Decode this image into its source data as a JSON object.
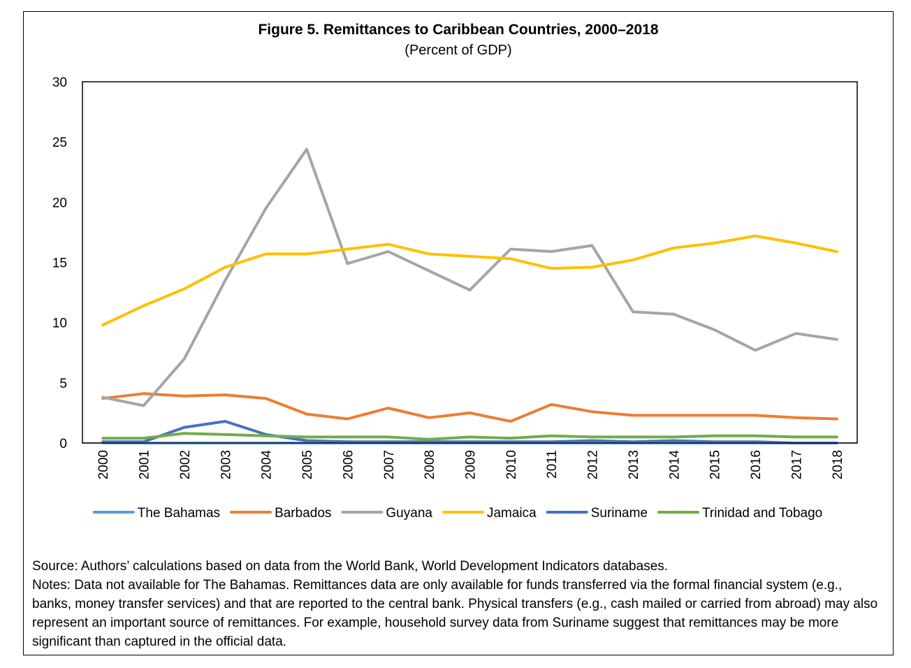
{
  "chart_data": {
    "type": "line",
    "title": "Figure 5. Remittances to Caribbean Countries, 2000–2018",
    "subtitle": "(Percent of GDP)",
    "xlabel": "",
    "ylabel": "",
    "ylim": [
      0,
      30
    ],
    "yticks": [
      "0",
      "5",
      "10",
      "15",
      "20",
      "25",
      "30"
    ],
    "categories": [
      "2000",
      "2001",
      "2002",
      "2003",
      "2004",
      "2005",
      "2006",
      "2007",
      "2008",
      "2009",
      "2010",
      "2011",
      "2012",
      "2013",
      "2014",
      "2015",
      "2016",
      "2017",
      "2018"
    ],
    "grid": false,
    "legend_position": "bottom",
    "series": [
      {
        "name": "The Bahamas",
        "color": "#5B9BD5",
        "values": [
          0,
          0,
          0,
          0,
          0,
          0,
          0,
          0,
          0,
          0,
          0,
          0,
          0,
          0,
          0,
          0,
          0,
          0,
          0
        ]
      },
      {
        "name": "Barbados",
        "color": "#ED7D31",
        "values": [
          3.7,
          4.1,
          3.9,
          4.0,
          3.7,
          2.4,
          2.0,
          2.9,
          2.1,
          2.5,
          1.8,
          3.2,
          2.6,
          2.3,
          2.3,
          2.3,
          2.3,
          2.1,
          2.0
        ]
      },
      {
        "name": "Guyana",
        "color": "#A5A5A5",
        "values": [
          3.8,
          3.1,
          7.0,
          13.5,
          19.5,
          24.4,
          14.9,
          15.9,
          14.3,
          12.7,
          16.1,
          15.9,
          16.4,
          10.9,
          10.7,
          9.4,
          7.7,
          9.1,
          8.6
        ]
      },
      {
        "name": "Jamaica",
        "color": "#FFC000",
        "values": [
          9.8,
          11.4,
          12.8,
          14.6,
          15.7,
          15.7,
          16.1,
          16.5,
          15.7,
          15.5,
          15.3,
          14.5,
          14.6,
          15.2,
          16.2,
          16.6,
          17.2,
          16.6,
          15.9
        ]
      },
      {
        "name": "Suriname",
        "color": "#4472C4",
        "values": [
          0.1,
          0.1,
          1.3,
          1.8,
          0.7,
          0.2,
          0.1,
          0.1,
          0.1,
          0.1,
          0.1,
          0.1,
          0.2,
          0.1,
          0.2,
          0.1,
          0.1,
          0.0,
          0.0
        ]
      },
      {
        "name": "Trinidad and Tobago",
        "color": "#70AD47",
        "values": [
          0.4,
          0.4,
          0.8,
          0.7,
          0.6,
          0.5,
          0.5,
          0.5,
          0.3,
          0.5,
          0.4,
          0.6,
          0.5,
          0.5,
          0.5,
          0.6,
          0.6,
          0.5,
          0.5
        ]
      }
    ]
  },
  "notes": {
    "source": "Source: Authors’ calculations based on data from the World Bank, World Development Indicators databases.",
    "text": "Notes: Data not available for The Bahamas. Remittances data are only available for funds transferred via the formal financial system (e.g., banks, money transfer services) and that are reported to the central bank. Physical transfers (e.g., cash mailed or carried from abroad) may also represent an important source of remittances. For example, household survey data from Suriname suggest that remittances may be more significant than captured in the official data."
  }
}
